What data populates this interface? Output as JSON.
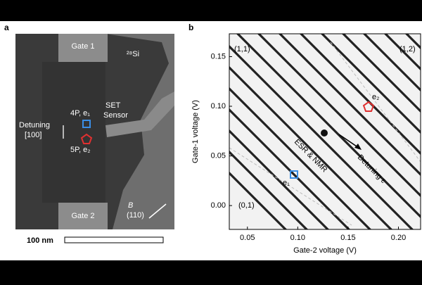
{
  "panel_labels": [
    "a",
    "b"
  ],
  "panel_a": {
    "gate_1": "Gate 1",
    "isotope": "²⁸Si",
    "set_sensor": [
      "SET",
      "Sensor"
    ],
    "donor_4p": "4P, e₁",
    "detuning": [
      "Detuning",
      "[100]"
    ],
    "donor_5p": "5P, e₂",
    "gate_2": "Gate 2",
    "field": [
      "B",
      "(110)"
    ],
    "scale_bar": "100 nm"
  },
  "panel_b": {
    "x_label": "Gate-2 voltage (V)",
    "y_label": "Gate-1 voltage (V)",
    "xlim": [
      0.032,
      0.222
    ],
    "ylim": [
      -0.024,
      0.173
    ],
    "xticks": [
      {
        "value": 0.05,
        "label": "0.05"
      },
      {
        "value": 0.1,
        "label": "0.10"
      },
      {
        "value": 0.15,
        "label": "0.15"
      },
      {
        "value": 0.2,
        "label": "0.20"
      }
    ],
    "yticks": [
      {
        "value": 0,
        "label": "0.00"
      },
      {
        "value": 0.05,
        "label": "0.05"
      },
      {
        "value": 0.1,
        "label": "0.10"
      },
      {
        "value": 0.15,
        "label": "0.15"
      }
    ],
    "region_11": "(1,1)",
    "region_12": "(1,2)",
    "region_01": "(0,1)",
    "e2": "e₂",
    "e1": "e₁",
    "esr": "ESR & NMR",
    "detuning": "Detuning ε"
  }
}
